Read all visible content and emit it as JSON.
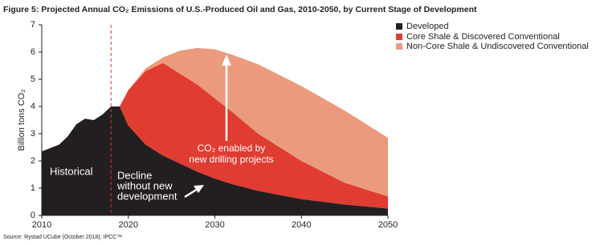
{
  "chart_data": {
    "type": "stacked-area",
    "title": "Figure 5: Projected Annual CO₂ Emissions of U.S.-Produced Oil and Gas, 2010-2050, by Current Stage of Development",
    "y_label": "Billion tons CO₂",
    "source": "Source: Rystad UCube (October 2018); IPCC™",
    "x": [
      2010,
      2012,
      2013,
      2014,
      2015,
      2016,
      2017,
      2018,
      2019,
      2020,
      2022,
      2024,
      2026,
      2028,
      2030,
      2032,
      2035,
      2040,
      2045,
      2050
    ],
    "series": [
      {
        "name": "Developed",
        "color": "#231f20",
        "values": [
          2.35,
          2.6,
          2.9,
          3.35,
          3.55,
          3.5,
          3.7,
          4.0,
          4.0,
          3.3,
          2.6,
          2.2,
          1.9,
          1.6,
          1.35,
          1.15,
          0.9,
          0.6,
          0.4,
          0.25
        ]
      },
      {
        "name": "Core Shale & Discovered Conventional",
        "color": "#e03c31",
        "values": [
          0,
          0,
          0,
          0,
          0,
          0,
          0,
          0,
          0,
          1.3,
          2.7,
          3.4,
          3.3,
          3.2,
          2.95,
          2.65,
          2.1,
          1.4,
          0.8,
          0.45
        ]
      },
      {
        "name": "Non-Core Shale & Undiscovered Conventional",
        "color": "#eb9a7e",
        "values": [
          0,
          0,
          0,
          0,
          0,
          0,
          0,
          0,
          0,
          0,
          0.1,
          0.2,
          0.85,
          1.35,
          1.8,
          2.1,
          2.55,
          2.75,
          2.65,
          2.15
        ]
      }
    ],
    "xlim": [
      2010,
      2050
    ],
    "xticks": [
      2010,
      2020,
      2030,
      2040,
      2050
    ],
    "ylim": [
      0,
      7
    ],
    "yticks": [
      0,
      1,
      2,
      3,
      4,
      5,
      6,
      7
    ],
    "divider_x": 2018,
    "divider_color": "#d9342b",
    "annotations": {
      "historical": "Historical",
      "decline": [
        "Decline",
        "without new",
        "development"
      ],
      "drilling": [
        "CO₂ enabled by",
        "new drilling projects"
      ]
    }
  }
}
